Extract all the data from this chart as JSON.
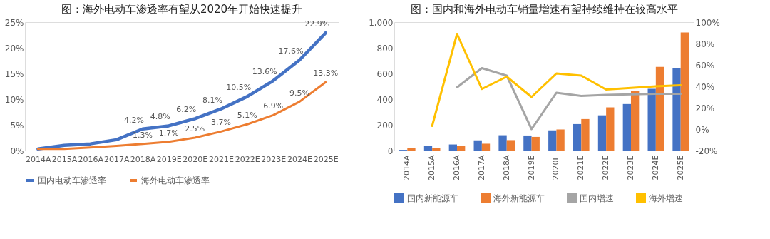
{
  "chart_data": [
    {
      "type": "line",
      "title": "图：海外电动车渗透率有望从2020年开始快速提升",
      "categories": [
        "2014A",
        "2015A",
        "2016A",
        "2017A",
        "2018A",
        "2019E",
        "2020E",
        "2021E",
        "2022E",
        "2023E",
        "2024E",
        "2025E"
      ],
      "series": [
        {
          "name": "国内电动车渗透率",
          "color": "#4472c4",
          "values": [
            0.3,
            1.0,
            1.3,
            2.1,
            4.2,
            4.8,
            6.2,
            8.1,
            10.5,
            13.6,
            17.6,
            22.9
          ],
          "value_labels": [
            null,
            null,
            null,
            null,
            "4.2%",
            "4.8%",
            "6.2%",
            "8.1%",
            "10.5%",
            "13.6%",
            "17.6%",
            "22.9%"
          ]
        },
        {
          "name": "海外电动车渗透率",
          "color": "#ed7d31",
          "values": [
            0.3,
            0.3,
            0.6,
            0.9,
            1.3,
            1.7,
            2.5,
            3.7,
            5.1,
            6.9,
            9.5,
            13.3
          ],
          "value_labels": [
            null,
            null,
            null,
            null,
            "1.3%",
            "1.7%",
            "2.5%",
            "3.7%",
            "5.1%",
            "6.9%",
            "9.5%",
            "13.3%"
          ]
        }
      ],
      "ylim": [
        0,
        25
      ],
      "yticks": [
        {
          "value": 0,
          "label": "0%"
        },
        {
          "value": 5,
          "label": "5%"
        },
        {
          "value": 10,
          "label": "10%"
        },
        {
          "value": 15,
          "label": "15%"
        },
        {
          "value": 20,
          "label": "20%"
        },
        {
          "value": 25,
          "label": "25%"
        }
      ],
      "legend": "bottom",
      "grid": false
    },
    {
      "type": "bar",
      "title": "图：国内和海外电动车销量增速有望持续维持在较高水平",
      "categories": [
        "2014A",
        "2015A",
        "2016A",
        "2017A",
        "2018A",
        "2019E",
        "2020E",
        "2021E",
        "2022E",
        "2023E",
        "2024E",
        "2025E"
      ],
      "series": [
        {
          "name": "国内新能源车",
          "color": "#4472c4",
          "values": [
            5,
            34,
            47,
            79,
            119,
            117,
            157,
            206,
            274,
            362,
            481,
            640
          ]
        },
        {
          "name": "海外新能源车",
          "color": "#ed7d31",
          "values": [
            21,
            21,
            38,
            53,
            81,
            106,
            164,
            245,
            336,
            466,
            651,
            919
          ]
        },
        {
          "name": "国内增速",
          "color": "#a5a5a5",
          "type": "line",
          "axis": "y2",
          "values": [
            null,
            null,
            39,
            57,
            50,
            0,
            34,
            31,
            32,
            32.5,
            33,
            33
          ]
        },
        {
          "name": "海外增速",
          "color": "#ffc000",
          "type": "line",
          "axis": "y2",
          "values": [
            null,
            3,
            89,
            37.5,
            49,
            30,
            52,
            50,
            37,
            38.5,
            40,
            41
          ]
        }
      ],
      "ylim": [
        0,
        1000
      ],
      "yticks": [
        0,
        200,
        400,
        600,
        800,
        {
          "value": 1000,
          "label": "1,000"
        }
      ],
      "y2lim": [
        -20,
        100
      ],
      "y2ticks": [
        {
          "value": -20,
          "label": "-20%"
        },
        {
          "value": 0,
          "label": "0%"
        },
        {
          "value": 20,
          "label": "20%"
        },
        {
          "value": 40,
          "label": "40%"
        },
        {
          "value": 60,
          "label": "60%"
        },
        {
          "value": 80,
          "label": "80%"
        },
        {
          "value": 100,
          "label": "100%"
        }
      ],
      "legend": "bottom",
      "grid": false
    }
  ]
}
